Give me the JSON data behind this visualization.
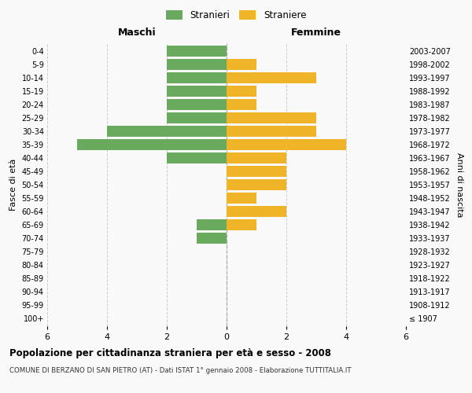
{
  "age_groups": [
    "100+",
    "95-99",
    "90-94",
    "85-89",
    "80-84",
    "75-79",
    "70-74",
    "65-69",
    "60-64",
    "55-59",
    "50-54",
    "45-49",
    "40-44",
    "35-39",
    "30-34",
    "25-29",
    "20-24",
    "15-19",
    "10-14",
    "5-9",
    "0-4"
  ],
  "birth_years": [
    "≤ 1907",
    "1908-1912",
    "1913-1917",
    "1918-1922",
    "1923-1927",
    "1928-1932",
    "1933-1937",
    "1938-1942",
    "1943-1947",
    "1948-1952",
    "1953-1957",
    "1958-1962",
    "1963-1967",
    "1968-1972",
    "1973-1977",
    "1978-1982",
    "1983-1987",
    "1988-1992",
    "1993-1997",
    "1998-2002",
    "2003-2007"
  ],
  "maschi": [
    0,
    0,
    0,
    0,
    0,
    0,
    1,
    1,
    0,
    0,
    0,
    0,
    2,
    5,
    4,
    2,
    2,
    2,
    2,
    2,
    2
  ],
  "femmine": [
    0,
    0,
    0,
    0,
    0,
    0,
    0,
    1,
    2,
    1,
    2,
    2,
    2,
    4,
    3,
    3,
    1,
    1,
    3,
    1,
    0
  ],
  "maschi_color": "#6aaa5e",
  "femmine_color": "#f0b429",
  "title": "Popolazione per cittadinanza straniera per età e sesso - 2008",
  "subtitle": "COMUNE DI BERZANO DI SAN PIETRO (AT) - Dati ISTAT 1° gennaio 2008 - Elaborazione TUTTITALIA.IT",
  "xlabel_left": "Maschi",
  "xlabel_right": "Femmine",
  "ylabel_left": "Fasce di età",
  "ylabel_right": "Anni di nascita",
  "legend_stranieri": "Stranieri",
  "legend_straniere": "Straniere",
  "xlim": 6,
  "background_color": "#f9f9f9",
  "grid_color": "#cccccc",
  "bar_height": 0.8
}
